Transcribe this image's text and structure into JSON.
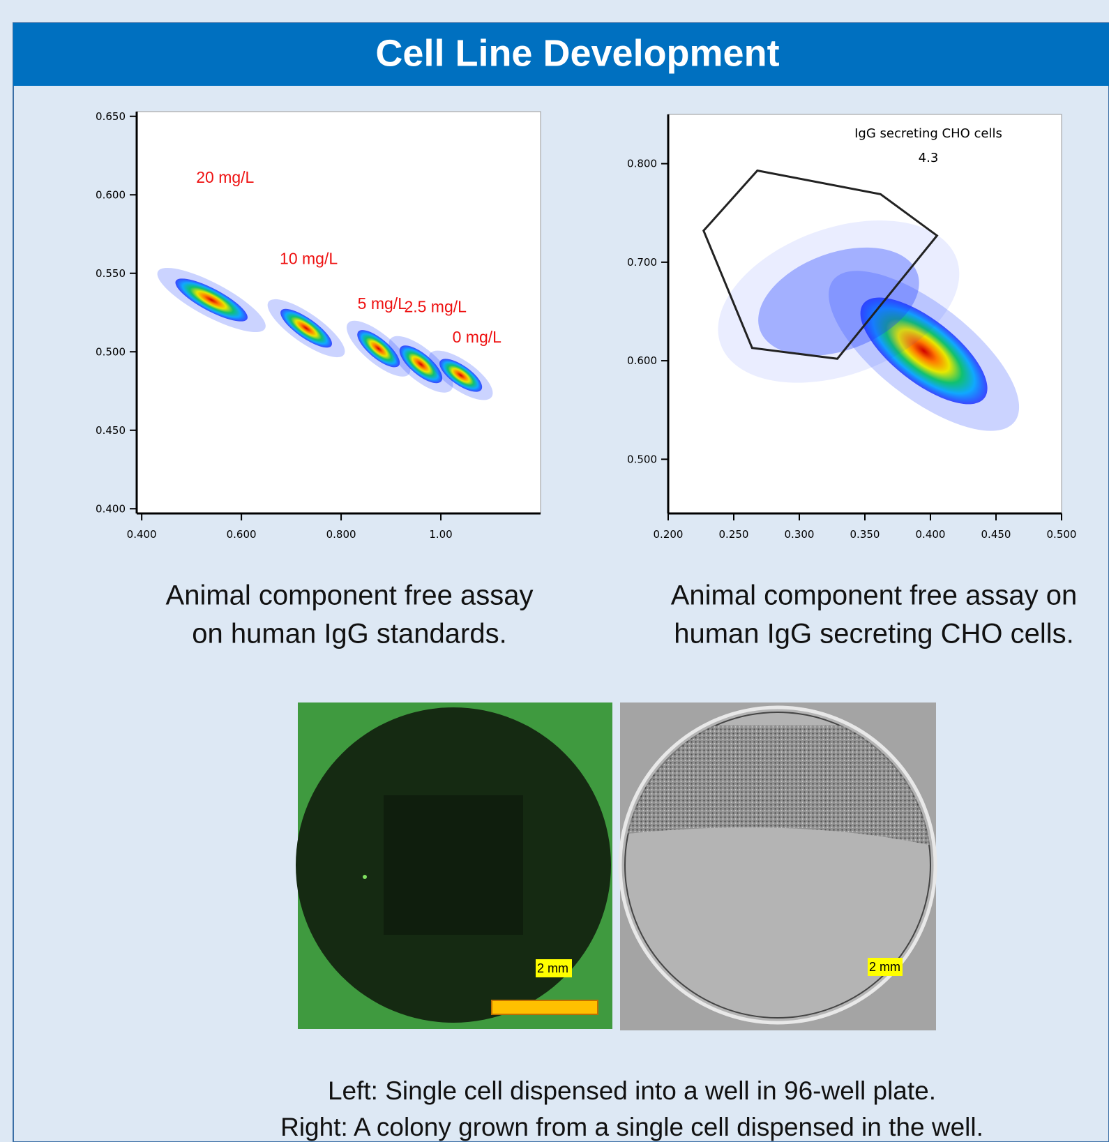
{
  "header": {
    "title": "Cell Line Development"
  },
  "chart_data": [
    {
      "type": "scatter",
      "xlim": [
        0.39,
        1.2
      ],
      "ylim": [
        0.397,
        0.653
      ],
      "xticks": [
        {
          "value": 0.4,
          "label": "0.400"
        },
        {
          "value": 0.6,
          "label": "0.600"
        },
        {
          "value": 0.8,
          "label": "0.800"
        },
        {
          "value": 1,
          "label": "1.00"
        }
      ],
      "yticks": [
        {
          "value": 0.4,
          "label": "0.400"
        },
        {
          "value": 0.45,
          "label": "0.450"
        },
        {
          "value": 0.5,
          "label": "0.500"
        },
        {
          "value": 0.55,
          "label": "0.550"
        },
        {
          "value": 0.6,
          "label": "0.600"
        },
        {
          "value": 0.65,
          "label": "0.650"
        }
      ],
      "clusters": [
        {
          "label": "20 mg/L",
          "x": 0.54,
          "y": 0.533
        },
        {
          "label": "10 mg/L",
          "x": 0.73,
          "y": 0.515
        },
        {
          "label": "5 mg/L",
          "x": 0.875,
          "y": 0.502
        },
        {
          "label": "2.5 mg/L",
          "x": 0.96,
          "y": 0.492
        },
        {
          "label": "0 mg/L",
          "x": 1.04,
          "y": 0.485
        }
      ]
    },
    {
      "type": "scatter",
      "xlim": [
        0.2,
        0.5
      ],
      "ylim": [
        0.445,
        0.85
      ],
      "xticks": [
        {
          "value": 0.2,
          "label": "0.200"
        },
        {
          "value": 0.25,
          "label": "0.250"
        },
        {
          "value": 0.3,
          "label": "0.300"
        },
        {
          "value": 0.35,
          "label": "0.350"
        },
        {
          "value": 0.4,
          "label": "0.400"
        },
        {
          "value": 0.45,
          "label": "0.450"
        },
        {
          "value": 0.5,
          "label": "0.500"
        }
      ],
      "yticks": [
        {
          "value": 0.5,
          "label": "0.500"
        },
        {
          "value": 0.6,
          "label": "0.600"
        },
        {
          "value": 0.7,
          "label": "0.700"
        },
        {
          "value": 0.8,
          "label": "0.800"
        }
      ],
      "clusters": [
        {
          "x": 0.395,
          "y": 0.61
        },
        {
          "x": 0.33,
          "y": 0.66
        }
      ],
      "gate": {
        "label": "IgG secreting CHO cells",
        "value": 4.3,
        "x": [
          0.227,
          0.268,
          0.362,
          0.405,
          0.329,
          0.264
        ],
        "y": [
          0.732,
          0.793,
          0.769,
          0.727,
          0.602,
          0.613
        ]
      }
    }
  ],
  "captions": [
    [
      "Animal component free assay",
      "on human IgG standards."
    ],
    [
      "Animal component free assay on",
      "human IgG secreting CHO cells."
    ]
  ],
  "images": {
    "scale_labels": [
      "2 mm",
      "2 mm"
    ]
  },
  "footer": [
    "Left: Single cell dispensed into a well in 96-well plate.",
    "Right: A colony grown from a single cell dispensed in the well."
  ]
}
